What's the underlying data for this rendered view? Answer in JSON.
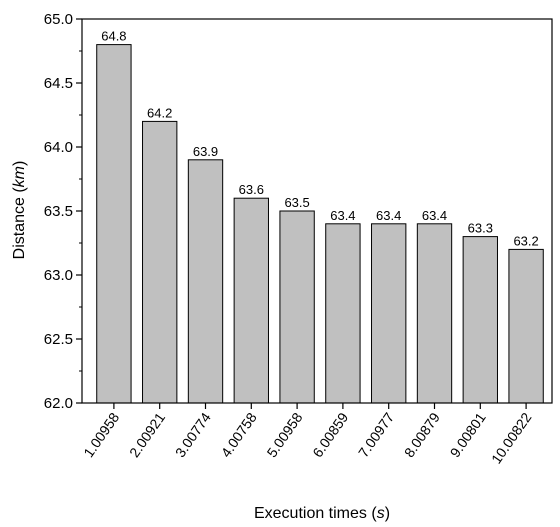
{
  "chart_data": {
    "type": "bar",
    "categories": [
      "1.00958",
      "2.00921",
      "3.00774",
      "4.00758",
      "5.00958",
      "6.00859",
      "7.00977",
      "8.00879",
      "9.00801",
      "10.00822"
    ],
    "values": [
      64.8,
      64.2,
      63.9,
      63.6,
      63.5,
      63.4,
      63.4,
      63.4,
      63.3,
      63.2
    ],
    "data_labels": [
      "64.8",
      "64.2",
      "63.9",
      "63.6",
      "63.5",
      "63.4",
      "63.4",
      "63.4",
      "63.3",
      "63.2"
    ],
    "ylim": [
      62.0,
      65.0
    ],
    "yticks": [
      "62.0",
      "62.5",
      "63.0",
      "63.5",
      "64.0",
      "64.5",
      "65.0"
    ],
    "ytick_values": [
      62.0,
      62.5,
      63.0,
      63.5,
      64.0,
      64.5,
      65.0
    ],
    "xlabel": {
      "prefix": "Execution times (",
      "unit": "s",
      "suffix": ")"
    },
    "ylabel": {
      "prefix": "Distance (",
      "unit": "km",
      "suffix": ")"
    },
    "title": "",
    "legend": "none",
    "grid": false,
    "bar_fill": "#c0c0c0",
    "bar_stroke": "#000000"
  }
}
